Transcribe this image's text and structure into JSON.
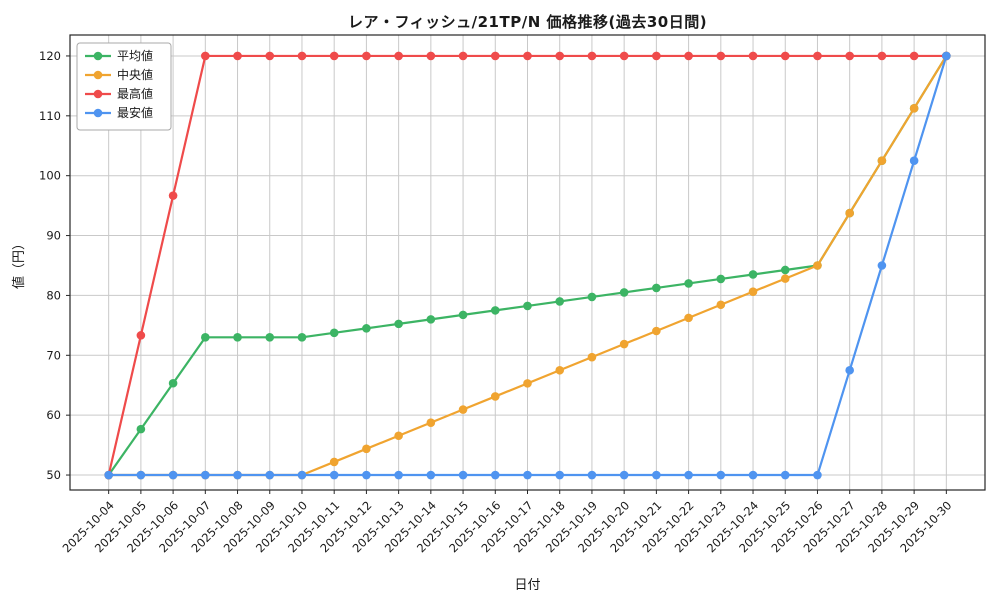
{
  "chart_data": {
    "type": "line",
    "title": "レア・フィッシュ/21TP/N 価格推移(過去30日間)",
    "xlabel": "日付",
    "ylabel": "値（円）",
    "grid": true,
    "legend_position": "upper-left",
    "ylim": [
      47.5,
      123.5
    ],
    "yticks": [
      50,
      60,
      70,
      80,
      90,
      100,
      110,
      120
    ],
    "x": [
      "2025-10-04",
      "2025-10-05",
      "2025-10-06",
      "2025-10-07",
      "2025-10-08",
      "2025-10-09",
      "2025-10-10",
      "2025-10-11",
      "2025-10-12",
      "2025-10-13",
      "2025-10-14",
      "2025-10-15",
      "2025-10-16",
      "2025-10-17",
      "2025-10-18",
      "2025-10-19",
      "2025-10-20",
      "2025-10-21",
      "2025-10-22",
      "2025-10-23",
      "2025-10-24",
      "2025-10-25",
      "2025-10-26",
      "2025-10-27",
      "2025-10-28",
      "2025-10-29",
      "2025-10-30"
    ],
    "series": [
      {
        "name": "平均値",
        "color": "#3cb464",
        "values": [
          50,
          57.67,
          65.33,
          73,
          73,
          73,
          73,
          73.75,
          74.5,
          75.25,
          76,
          76.75,
          77.5,
          78.25,
          79,
          79.75,
          80.5,
          81.25,
          82,
          82.75,
          83.5,
          84.25,
          85,
          93.75,
          102.5,
          111.25,
          120
        ]
      },
      {
        "name": "中央値",
        "color": "#f0a430",
        "values": [
          50,
          50,
          50,
          50,
          50,
          50,
          50,
          52.19,
          54.38,
          56.56,
          58.75,
          60.94,
          63.13,
          65.31,
          67.5,
          69.69,
          71.88,
          74.06,
          76.25,
          78.44,
          80.63,
          82.81,
          85,
          93.75,
          102.5,
          111.25,
          120
        ]
      },
      {
        "name": "最高値",
        "color": "#ef4b4b",
        "values": [
          50,
          73.33,
          96.67,
          120,
          120,
          120,
          120,
          120,
          120,
          120,
          120,
          120,
          120,
          120,
          120,
          120,
          120,
          120,
          120,
          120,
          120,
          120,
          120,
          120,
          120,
          120,
          120
        ]
      },
      {
        "name": "最安値",
        "color": "#4f94f0",
        "values": [
          50,
          50,
          50,
          50,
          50,
          50,
          50,
          50,
          50,
          50,
          50,
          50,
          50,
          50,
          50,
          50,
          50,
          50,
          50,
          50,
          50,
          50,
          50,
          67.5,
          85,
          102.5,
          120
        ]
      }
    ]
  },
  "colors": {
    "grid": "#c9c9c9",
    "axis": "#262626",
    "tick_label": "#1a1a1a",
    "legend_border": "#a8a8a8",
    "legend_background": "#ffffff",
    "background": "#ffffff"
  }
}
